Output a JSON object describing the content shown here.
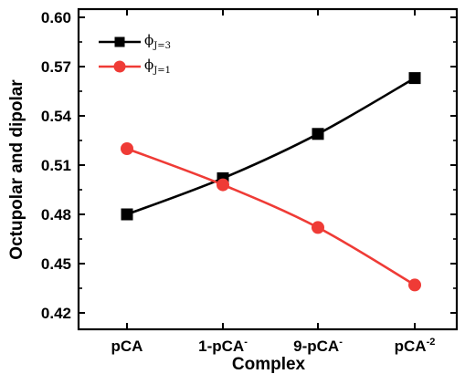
{
  "chart_data": {
    "type": "line",
    "xlabel": "Complex",
    "ylabel": "Octupolar and dipolar",
    "ylim": [
      0.41,
      0.605
    ],
    "yticks": [
      "0.42",
      "0.45",
      "0.48",
      "0.51",
      "0.54",
      "0.57",
      "0.60"
    ],
    "categories": [
      {
        "base": "pCA",
        "sup": ""
      },
      {
        "base": "1-pCA",
        "sup": "-"
      },
      {
        "base": "9-pCA",
        "sup": "-"
      },
      {
        "base": "pCA",
        "sup": "-2"
      }
    ],
    "grid": false,
    "legend_position": "top-left",
    "series": [
      {
        "name": "ϕ",
        "name_sub": "J=3",
        "marker": "square",
        "color": "#000000",
        "values": [
          0.48,
          0.502,
          0.529,
          0.563
        ]
      },
      {
        "name": "ϕ",
        "name_sub": "J=1",
        "marker": "circle",
        "color": "#ef3b36",
        "values": [
          0.52,
          0.498,
          0.472,
          0.437
        ]
      }
    ]
  }
}
